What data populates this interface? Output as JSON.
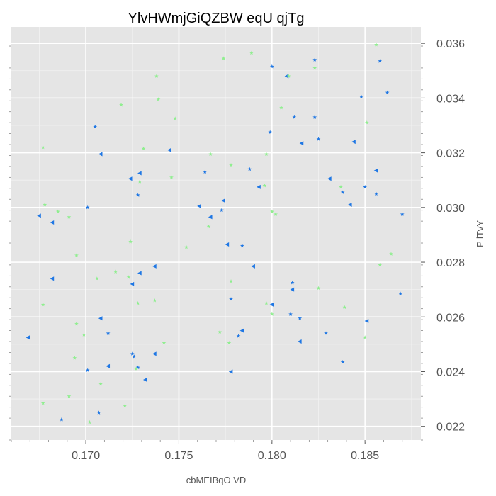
{
  "chart_data": {
    "type": "scatter",
    "title": "YlvHWmjGiQZBW eqU qjTg",
    "xlabel": "cbMEIBqO VD",
    "ylabel": "P lTvY",
    "xlim": [
      0.166,
      0.188
    ],
    "ylim": [
      0.0215,
      0.0366
    ],
    "x_ticks": [
      0.17,
      0.175,
      0.18,
      0.185
    ],
    "x_tick_labels": [
      "0.170",
      "0.175",
      "0.180",
      "0.185"
    ],
    "y_ticks": [
      0.022,
      0.024,
      0.026,
      0.028,
      0.03,
      0.032,
      0.034,
      0.036
    ],
    "y_tick_labels": [
      "0.022",
      "0.024",
      "0.026",
      "0.028",
      "0.030",
      "0.032",
      "0.034",
      "0.036"
    ],
    "y_axis_side": "right",
    "grid": true,
    "background_color": "#e5e5e5",
    "series": [
      {
        "color": "#1f77e4",
        "marker": "left-triangle",
        "points": [
          [
            0.1669,
            0.02525
          ],
          [
            0.1675,
            0.0297
          ],
          [
            0.1682,
            0.02945
          ],
          [
            0.1682,
            0.0274
          ],
          [
            0.1708,
            0.02595
          ],
          [
            0.1708,
            0.03195
          ],
          [
            0.1712,
            0.0242
          ],
          [
            0.1724,
            0.03105
          ],
          [
            0.1725,
            0.0272
          ],
          [
            0.1729,
            0.03125
          ],
          [
            0.1729,
            0.0276
          ],
          [
            0.1732,
            0.0237
          ],
          [
            0.1737,
            0.02785
          ],
          [
            0.1737,
            0.02465
          ],
          [
            0.1745,
            0.0321
          ],
          [
            0.1761,
            0.03005
          ],
          [
            0.1767,
            0.02965
          ],
          [
            0.1774,
            0.03025
          ],
          [
            0.1776,
            0.02865
          ],
          [
            0.1778,
            0.024
          ],
          [
            0.1784,
            0.0255
          ],
          [
            0.179,
            0.02785
          ],
          [
            0.1793,
            0.03075
          ],
          [
            0.18,
            0.02645
          ],
          [
            0.1808,
            0.0348
          ],
          [
            0.1811,
            0.027
          ],
          [
            0.1815,
            0.0251
          ],
          [
            0.1816,
            0.03235
          ],
          [
            0.1831,
            0.03105
          ],
          [
            0.1842,
            0.0301
          ],
          [
            0.1844,
            0.0324
          ],
          [
            0.1851,
            0.02585
          ],
          [
            0.1856,
            0.03135
          ]
        ]
      },
      {
        "color": "#1f77e4",
        "marker": "star",
        "points": [
          [
            0.1687,
            0.02225
          ],
          [
            0.1701,
            0.02405
          ],
          [
            0.1701,
            0.03
          ],
          [
            0.1705,
            0.03295
          ],
          [
            0.1707,
            0.0225
          ],
          [
            0.1712,
            0.0254
          ],
          [
            0.1725,
            0.02465
          ],
          [
            0.1726,
            0.02455
          ],
          [
            0.1728,
            0.02415
          ],
          [
            0.1728,
            0.03045
          ],
          [
            0.1764,
            0.0313
          ],
          [
            0.1773,
            0.0299
          ],
          [
            0.1778,
            0.02665
          ],
          [
            0.1782,
            0.0253
          ],
          [
            0.1784,
            0.0286
          ],
          [
            0.1788,
            0.0314
          ],
          [
            0.1799,
            0.03275
          ],
          [
            0.18,
            0.03515
          ],
          [
            0.181,
            0.0261
          ],
          [
            0.1811,
            0.02725
          ],
          [
            0.1812,
            0.0333
          ],
          [
            0.1815,
            0.02595
          ],
          [
            0.1823,
            0.0354
          ],
          [
            0.1823,
            0.0333
          ],
          [
            0.1825,
            0.0325
          ],
          [
            0.1829,
            0.0254
          ],
          [
            0.1838,
            0.03055
          ],
          [
            0.1838,
            0.02435
          ],
          [
            0.1848,
            0.03405
          ],
          [
            0.185,
            0.03075
          ],
          [
            0.1856,
            0.0305
          ],
          [
            0.1858,
            0.03535
          ],
          [
            0.1862,
            0.0342
          ],
          [
            0.1869,
            0.02685
          ],
          [
            0.187,
            0.02975
          ]
        ]
      },
      {
        "color": "#90ee90",
        "marker": "star",
        "points": [
          [
            0.1677,
            0.02285
          ],
          [
            0.1677,
            0.02645
          ],
          [
            0.1677,
            0.0322
          ],
          [
            0.1678,
            0.0301
          ],
          [
            0.1685,
            0.02985
          ],
          [
            0.1691,
            0.0231
          ],
          [
            0.1691,
            0.02965
          ],
          [
            0.1694,
            0.0245
          ],
          [
            0.1695,
            0.02575
          ],
          [
            0.1695,
            0.02825
          ],
          [
            0.1699,
            0.02535
          ],
          [
            0.1702,
            0.02215
          ],
          [
            0.1706,
            0.0274
          ],
          [
            0.1708,
            0.02355
          ],
          [
            0.1716,
            0.02765
          ],
          [
            0.1719,
            0.03375
          ],
          [
            0.1721,
            0.02275
          ],
          [
            0.1723,
            0.02745
          ],
          [
            0.1724,
            0.02875
          ],
          [
            0.1727,
            0.0241
          ],
          [
            0.1728,
            0.0265
          ],
          [
            0.1729,
            0.03095
          ],
          [
            0.1731,
            0.03215
          ],
          [
            0.1737,
            0.0266
          ],
          [
            0.1738,
            0.0348
          ],
          [
            0.1739,
            0.03395
          ],
          [
            0.1742,
            0.02505
          ],
          [
            0.1746,
            0.0311
          ],
          [
            0.1748,
            0.03325
          ],
          [
            0.1754,
            0.02855
          ],
          [
            0.1766,
            0.0293
          ],
          [
            0.1767,
            0.03195
          ],
          [
            0.1772,
            0.02545
          ],
          [
            0.1774,
            0.03545
          ],
          [
            0.1777,
            0.02505
          ],
          [
            0.1778,
            0.03155
          ],
          [
            0.1778,
            0.0273
          ],
          [
            0.1789,
            0.03565
          ],
          [
            0.1796,
            0.0308
          ],
          [
            0.1797,
            0.03195
          ],
          [
            0.1797,
            0.0265
          ],
          [
            0.18,
            0.0261
          ],
          [
            0.18,
            0.02985
          ],
          [
            0.1802,
            0.02975
          ],
          [
            0.1805,
            0.03365
          ],
          [
            0.1809,
            0.0348
          ],
          [
            0.1823,
            0.0351
          ],
          [
            0.1825,
            0.02705
          ],
          [
            0.1837,
            0.03075
          ],
          [
            0.1839,
            0.02635
          ],
          [
            0.185,
            0.02525
          ],
          [
            0.1851,
            0.0331
          ],
          [
            0.1856,
            0.03595
          ],
          [
            0.1858,
            0.0279
          ],
          [
            0.1864,
            0.0283
          ]
        ]
      }
    ]
  }
}
